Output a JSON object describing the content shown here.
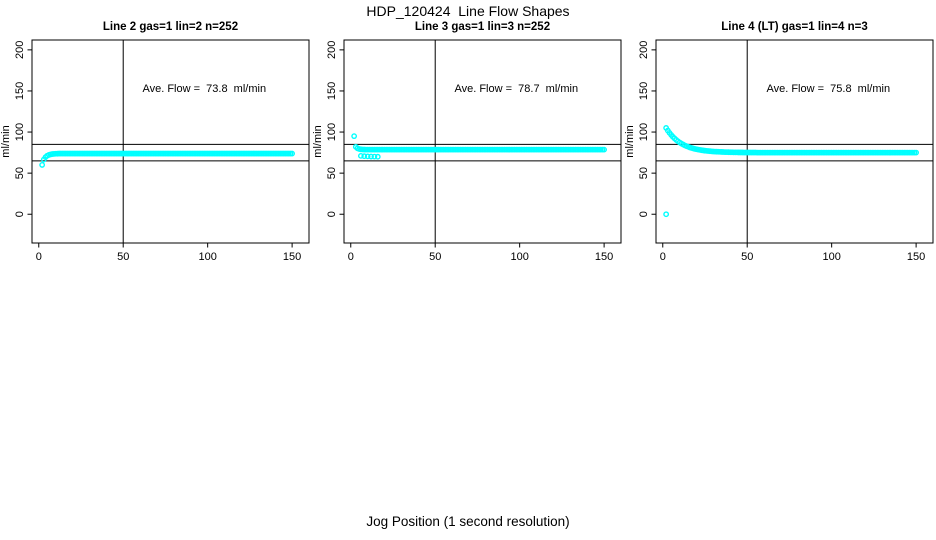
{
  "title": "HDP_120424  Line Flow Shapes",
  "xlabel": "Jog Position (1 second resolution)",
  "colors": {
    "points": "#00ffff",
    "axis": "#000000",
    "text": "#000000",
    "background": "#ffffff"
  },
  "chart_data": [
    {
      "type": "scatter",
      "name": "line2",
      "title": "Line 2 gas=1 lin=2 n=252",
      "ylabel": "ml/min",
      "annotation": {
        "text": "Ave. Flow =  73.8  ml/min",
        "x": 98,
        "y": 149
      },
      "xlim": [
        -4,
        160
      ],
      "ylim": [
        -35,
        212
      ],
      "xticks": [
        0,
        50,
        100,
        150
      ],
      "yticks": [
        0,
        50,
        100,
        150,
        200
      ],
      "hlines": [
        85,
        65
      ],
      "vlines": [
        50
      ],
      "series": {
        "x_start": 2,
        "x_step": 1,
        "y": [
          60,
          66.5,
          69.5,
          71.2,
          72.2,
          72.8,
          73.2,
          73.4,
          73.6,
          73.7,
          73.8,
          73.8,
          73.8,
          73.8,
          73.8,
          73.8,
          73.8,
          73.8,
          73.8,
          73.8,
          73.8,
          73.8,
          73.8,
          73.8,
          73.8,
          73.8,
          73.8,
          73.8,
          73.8,
          73.8,
          73.8,
          73.8,
          73.8,
          73.8,
          73.8,
          73.8,
          73.8,
          73.8,
          73.8,
          73.8,
          73.8,
          73.8,
          73.8,
          73.8,
          73.8,
          73.8,
          73.8,
          73.8,
          73.8,
          73.8,
          73.8,
          73.8,
          73.8,
          73.8,
          73.8,
          73.8,
          73.8,
          73.8,
          73.8,
          73.8,
          73.8,
          73.8,
          73.8,
          73.8,
          73.8,
          73.8,
          73.8,
          73.8,
          73.8,
          73.8,
          73.8,
          73.8,
          73.8,
          73.8,
          73.8,
          73.8,
          73.8,
          73.8,
          73.8,
          73.8,
          73.8,
          73.8,
          73.8,
          73.8,
          73.8,
          73.8,
          73.8,
          73.8,
          73.8,
          73.8,
          73.8,
          73.8,
          73.8,
          73.8,
          73.8,
          73.8,
          73.8,
          73.8,
          73.8,
          73.8,
          73.8,
          73.8,
          73.8,
          73.8,
          73.8,
          73.8,
          73.8,
          73.8,
          73.8,
          73.8,
          73.8,
          73.8,
          73.8,
          73.8,
          73.8,
          73.8,
          73.8,
          73.8,
          73.8,
          73.8,
          73.8,
          73.8,
          73.8,
          73.8,
          73.8,
          73.8,
          73.8,
          73.8,
          73.8,
          73.8,
          73.8,
          73.8,
          73.8,
          73.8,
          73.8,
          73.8,
          73.8,
          73.8,
          73.8,
          73.8,
          73.8,
          73.8,
          73.8,
          73.8,
          73.8,
          73.8,
          73.8,
          73.8,
          73.8
        ]
      },
      "extra_points": []
    },
    {
      "type": "scatter",
      "name": "line3",
      "title": "Line 3 gas=1 lin=3 n=252",
      "ylabel": "ml/min",
      "annotation": {
        "text": "Ave. Flow =  78.7  ml/min",
        "x": 98,
        "y": 149
      },
      "xlim": [
        -4,
        160
      ],
      "ylim": [
        -35,
        212
      ],
      "xticks": [
        0,
        50,
        100,
        150
      ],
      "yticks": [
        0,
        50,
        100,
        150,
        200
      ],
      "hlines": [
        85,
        65
      ],
      "vlines": [
        50
      ],
      "series": {
        "x_start": 2,
        "x_step": 1,
        "y": [
          95,
          82,
          80.2,
          79.4,
          79,
          78.8,
          78.7,
          78.6,
          78.6,
          78.6,
          78.6,
          78.6,
          78.6,
          78.6,
          78.6,
          78.6,
          78.6,
          78.6,
          78.6,
          78.6,
          78.6,
          78.6,
          78.6,
          78.6,
          78.6,
          78.6,
          78.6,
          78.6,
          78.6,
          78.6,
          78.6,
          78.6,
          78.6,
          78.6,
          78.6,
          78.6,
          78.6,
          78.6,
          78.6,
          78.6,
          78.6,
          78.6,
          78.6,
          78.6,
          78.6,
          78.6,
          78.6,
          78.6,
          78.6,
          78.6,
          78.6,
          78.6,
          78.6,
          78.6,
          78.6,
          78.6,
          78.6,
          78.6,
          78.6,
          78.6,
          78.6,
          78.6,
          78.6,
          78.6,
          78.6,
          78.6,
          78.6,
          78.6,
          78.6,
          78.6,
          78.6,
          78.6,
          78.6,
          78.6,
          78.6,
          78.6,
          78.6,
          78.6,
          78.6,
          78.6,
          78.6,
          78.6,
          78.6,
          78.6,
          78.6,
          78.6,
          78.6,
          78.6,
          78.6,
          78.6,
          78.6,
          78.6,
          78.6,
          78.6,
          78.6,
          78.6,
          78.6,
          78.6,
          78.6,
          78.6,
          78.6,
          78.6,
          78.6,
          78.6,
          78.6,
          78.6,
          78.6,
          78.6,
          78.6,
          78.6,
          78.6,
          78.6,
          78.6,
          78.6,
          78.6,
          78.6,
          78.6,
          78.6,
          78.6,
          78.6,
          78.6,
          78.6,
          78.6,
          78.6,
          78.6,
          78.6,
          78.6,
          78.6,
          78.6,
          78.6,
          78.6,
          78.6,
          78.6,
          78.6,
          78.6,
          78.6,
          78.6,
          78.6,
          78.6,
          78.6,
          78.6,
          78.6,
          78.6,
          78.6,
          78.6,
          78.6,
          78.6,
          78.6,
          78.6
        ]
      },
      "extra_points": [
        [
          6,
          71
        ],
        [
          8,
          70.6
        ],
        [
          10,
          70.4
        ],
        [
          12,
          70.2
        ],
        [
          14,
          70.1
        ],
        [
          16,
          70
        ]
      ]
    },
    {
      "type": "scatter",
      "name": "line4",
      "title": "Line 4 (LT) gas=1 lin=4 n=3",
      "ylabel": "ml/min",
      "annotation": {
        "text": "Ave. Flow =  75.8  ml/min",
        "x": 98,
        "y": 149
      },
      "xlim": [
        -4,
        160
      ],
      "ylim": [
        -35,
        212
      ],
      "xticks": [
        0,
        50,
        100,
        150
      ],
      "yticks": [
        0,
        50,
        100,
        150,
        200
      ],
      "hlines": [
        85,
        65
      ],
      "vlines": [
        50
      ],
      "series": {
        "x_start": 2,
        "x_step": 1,
        "y": [
          105,
          101.8,
          99,
          96.5,
          94.2,
          92.2,
          90.4,
          88.8,
          87.3,
          86,
          84.9,
          83.8,
          82.9,
          82.1,
          81.3,
          80.7,
          80.1,
          79.5,
          79.1,
          78.6,
          78.3,
          77.9,
          77.6,
          77.3,
          77.1,
          76.9,
          76.7,
          76.5,
          76.3,
          76.2,
          76.1,
          76,
          75.9,
          75.8,
          75.7,
          75.6,
          75.6,
          75.5,
          75.4,
          75.4,
          75.3,
          75.3,
          75.3,
          75.2,
          75.2,
          75.2,
          75.1,
          75.1,
          75.1,
          75.1,
          75.1,
          75.1,
          75.1,
          75.1,
          75,
          75,
          75,
          75,
          75,
          75,
          75,
          75,
          75,
          75,
          75,
          75,
          75,
          75,
          75,
          75,
          75,
          75,
          75,
          75,
          75,
          75,
          75,
          75,
          75,
          75,
          75,
          75,
          75,
          75,
          75,
          75,
          75,
          75,
          75,
          75,
          75,
          75,
          75,
          75,
          75,
          75,
          75,
          75,
          75,
          75,
          75,
          75,
          75,
          75,
          75,
          75,
          75,
          75,
          75,
          75,
          75,
          75,
          75,
          75,
          75,
          75,
          75,
          75,
          75,
          75,
          75,
          75,
          75,
          75,
          75,
          75,
          75,
          75,
          75,
          75,
          75,
          75,
          75,
          75,
          75,
          75,
          75,
          75,
          75,
          75,
          75,
          75,
          75,
          75,
          75,
          75,
          75,
          75,
          75
        ]
      },
      "extra_points": [
        [
          2,
          0
        ]
      ]
    }
  ]
}
